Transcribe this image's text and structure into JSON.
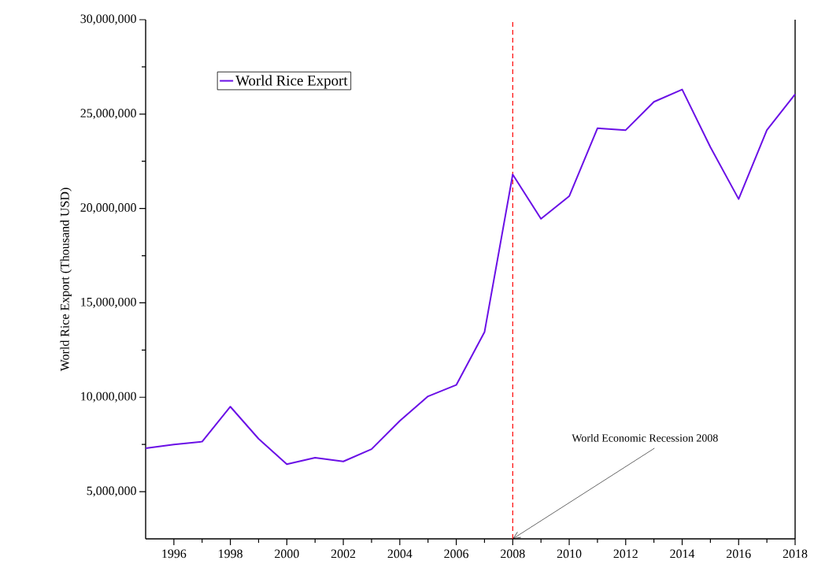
{
  "chart_data": {
    "type": "line",
    "ylabel": "World Rice Export (Thousand USD)",
    "x": [
      1995,
      1996,
      1997,
      1998,
      1999,
      2000,
      2001,
      2002,
      2003,
      2004,
      2005,
      2006,
      2007,
      2008,
      2009,
      2010,
      2011,
      2012,
      2013,
      2014,
      2015,
      2016,
      2017,
      2018
    ],
    "series": [
      {
        "name": "World Rice Export",
        "color": "#6a0fe6",
        "values": [
          7300000,
          7500000,
          7650000,
          9500000,
          7800000,
          6450000,
          6800000,
          6600000,
          7250000,
          8750000,
          10050000,
          10650000,
          13450000,
          21800000,
          19450000,
          20650000,
          24250000,
          24150000,
          25650000,
          26300000,
          23250000,
          20500000,
          24150000,
          26050000
        ]
      }
    ],
    "xlim": [
      1995,
      2018
    ],
    "ylim": [
      2500000,
      30000000
    ],
    "xticks": [
      1996,
      1998,
      2000,
      2002,
      2004,
      2006,
      2008,
      2010,
      2012,
      2014,
      2016,
      2018
    ],
    "yticks": [
      {
        "value": 5000000,
        "label": "5,000,000"
      },
      {
        "value": 10000000,
        "label": "10,000,000"
      },
      {
        "value": 15000000,
        "label": "15,000,000"
      },
      {
        "value": 20000000,
        "label": "20,000,000"
      },
      {
        "value": 25000000,
        "label": "25,000,000"
      },
      {
        "value": 30000000,
        "label": "30,000,000"
      }
    ],
    "ref_lines": [
      {
        "axis": "x",
        "value": 2008,
        "color": "#ff0000",
        "line_style": "dashed"
      }
    ],
    "annotations": [
      {
        "text": "World Economic Recession 2008",
        "x": 2008,
        "y": 2500000
      }
    ],
    "legend": "top left",
    "marker": "none",
    "line_style": "solid",
    "grid": false
  }
}
